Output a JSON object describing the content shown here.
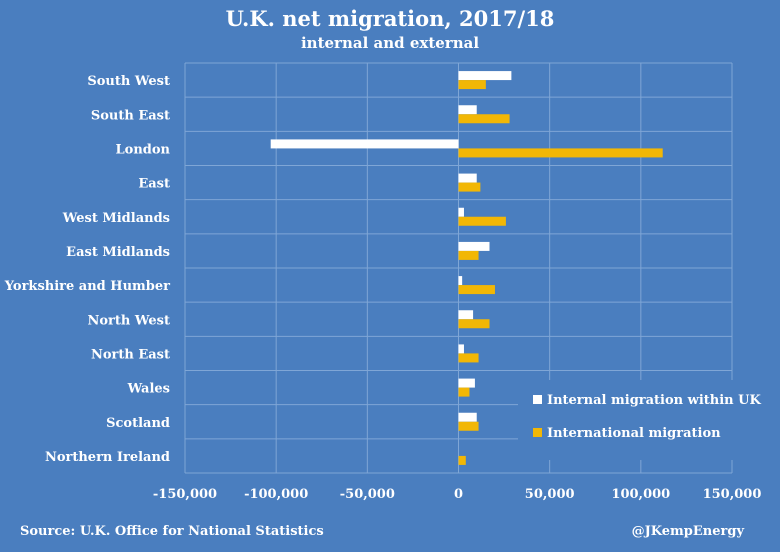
{
  "chart_data": {
    "type": "bar",
    "orientation": "horizontal",
    "title": "U.K. net migration, 2017/18",
    "subtitle": "internal and external",
    "categories": [
      "South West",
      "South East",
      "London",
      "East",
      "West Midlands",
      "East Midlands",
      "Yorkshire and Humber",
      "North West",
      "North East",
      "Wales",
      "Scotland",
      "Northern Ireland"
    ],
    "series": [
      {
        "name": "Internal migration within UK",
        "color": "#ffffff",
        "values": [
          29000,
          10000,
          -103000,
          10000,
          3000,
          17000,
          2000,
          8000,
          3000,
          9000,
          10000,
          0
        ]
      },
      {
        "name": "International migration",
        "color": "#f2b705",
        "values": [
          15000,
          28000,
          112000,
          12000,
          26000,
          11000,
          20000,
          17000,
          11000,
          6000,
          11000,
          4000
        ]
      }
    ],
    "xlim": [
      -150000,
      150000
    ],
    "xticks": [
      -150000,
      -100000,
      -50000,
      0,
      50000,
      100000,
      150000
    ],
    "xtick_labels": [
      "-150,000",
      "-100,000",
      "-50,000",
      "0",
      "50,000",
      "100,000",
      "150,000"
    ],
    "grid": true,
    "legend_position": "bottom-right"
  },
  "footer": {
    "source": "Source: U.K. Office for National Statistics",
    "credit": "@JKempEnergy"
  }
}
